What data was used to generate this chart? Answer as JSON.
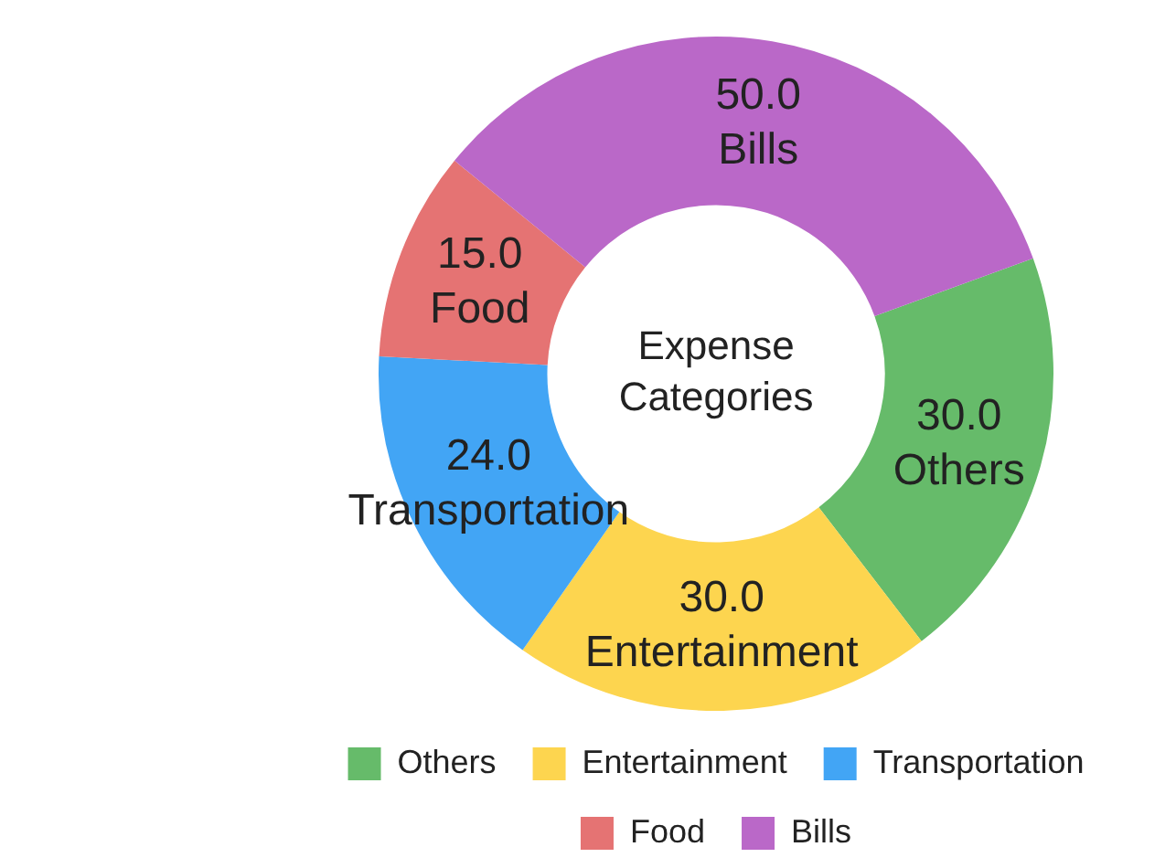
{
  "chart_data": {
    "type": "donut",
    "title": "Expense Categories",
    "categories": [
      "Others",
      "Entertainment",
      "Transportation",
      "Food",
      "Bills"
    ],
    "values": [
      30,
      30,
      24,
      15,
      50
    ],
    "value_labels": [
      "30.0",
      "30.0",
      "24.0",
      "15.0",
      "50.0"
    ],
    "colors": [
      "#66bb6a",
      "#fdd54f",
      "#42a5f5",
      "#e57373",
      "#ba68c8"
    ],
    "legend": "bottom"
  }
}
